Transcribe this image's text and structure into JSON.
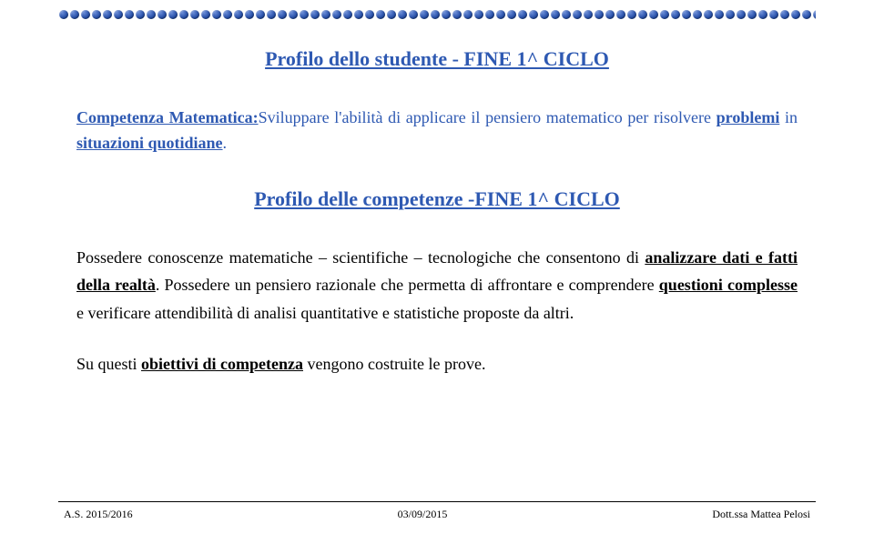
{
  "title": "Profilo dello studente - FINE 1^ CICLO",
  "para1_lead": "Competenza Matematica:",
  "para1_rest": "Sviluppare l'abilità di applicare il pensiero matematico per risolvere ",
  "para1_u1": "problemi",
  "para1_mid": " in ",
  "para1_u2": "situazioni quotidiane",
  "para1_end": ".",
  "subtitle": "Profilo delle competenze -FINE 1^ CICLO",
  "p2a": "Possedere conoscenze matematiche – scientifiche – tecnologiche che consentono di ",
  "p2b": "analizzare dati e fatti della realtà",
  "p2c": ". Possedere un pensiero razionale che permetta di affrontare e comprendere ",
  "p2d": "questioni complesse",
  "p2e": " e verificare attendibilità di analisi quantitative e statistiche proposte da altri.",
  "p3a": "Su questi ",
  "p3b": "obiettivi di competenza",
  "p3c": " vengono costruite le prove.",
  "footer": {
    "left": "A.S. 2015/2016",
    "center": "03/09/2015",
    "right": "Dott.ssa Mattea Pelosi"
  },
  "colors": {
    "blue": "#2e59b2",
    "black": "#000000",
    "bg": "#ffffff"
  }
}
